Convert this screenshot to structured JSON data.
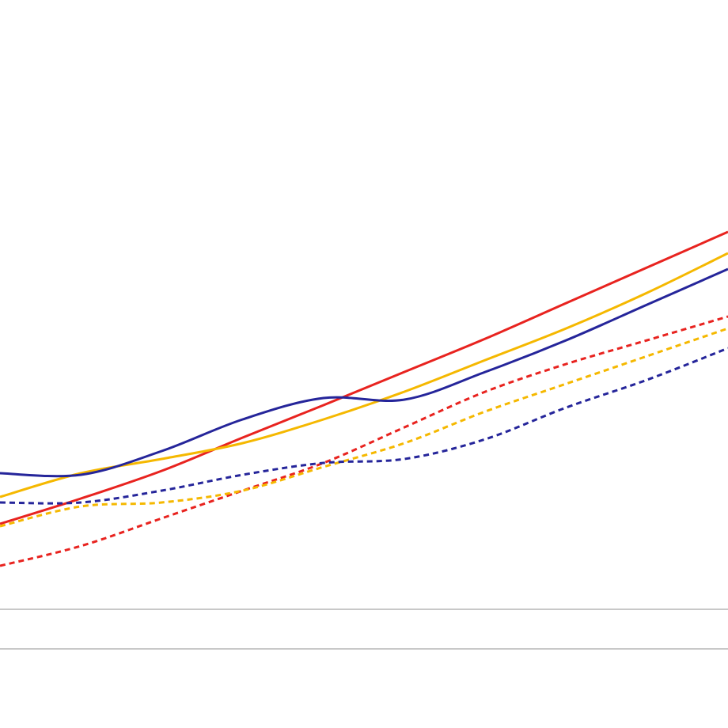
{
  "chart_data": {
    "type": "line",
    "x": [
      0,
      1,
      2,
      3,
      4,
      5,
      6,
      7,
      8,
      9
    ],
    "xlim": [
      0,
      9
    ],
    "ylim": [
      0,
      82
    ],
    "yticks": [
      0,
      5
    ],
    "grid": true,
    "series": [
      {
        "color": "#e8231f",
        "dashed": false,
        "values": [
          15.8,
          19.0,
          22.5,
          26.7,
          30.8,
          35.0,
          39.2,
          43.7,
          48.2,
          52.7
        ]
      },
      {
        "color": "#f5b800",
        "dashed": false,
        "values": [
          19.2,
          22.2,
          24.0,
          26.0,
          29.0,
          32.5,
          36.5,
          40.5,
          45.0,
          50.0
        ]
      },
      {
        "color": "#25259a",
        "dashed": false,
        "values": [
          22.2,
          22.0,
          25.0,
          29.0,
          31.7,
          31.5,
          35.0,
          39.0,
          43.5,
          48.0
        ]
      },
      {
        "color": "#e8231f",
        "dashed": true,
        "values": [
          10.5,
          13.0,
          16.5,
          20.0,
          23.5,
          28.0,
          32.5,
          36.0,
          39.0,
          42.0
        ]
      },
      {
        "color": "#f5b800",
        "dashed": true,
        "values": [
          15.5,
          18.0,
          18.5,
          20.0,
          23.0,
          26.0,
          30.0,
          33.5,
          37.0,
          40.5
        ]
      },
      {
        "color": "#25259a",
        "dashed": true,
        "values": [
          18.5,
          18.5,
          20.0,
          22.0,
          23.5,
          24.0,
          26.5,
          30.5,
          34.0,
          38.0
        ]
      }
    ]
  }
}
